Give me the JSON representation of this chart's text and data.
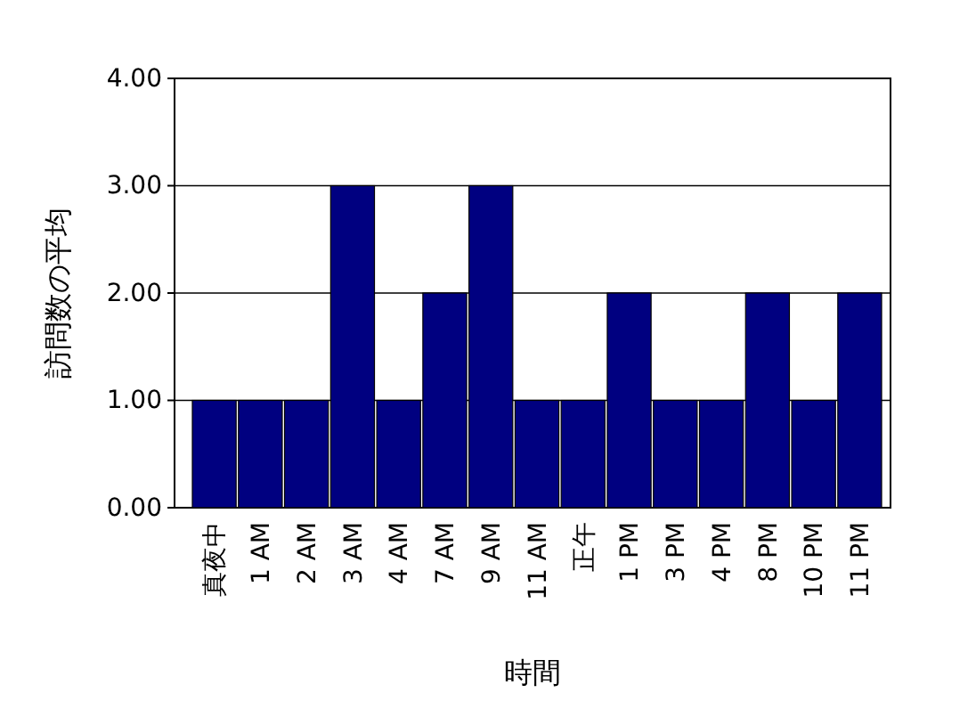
{
  "chart_data": {
    "type": "bar",
    "xlabel": "時間",
    "ylabel": "訪問数の平均",
    "categories": [
      "真夜中",
      "1 AM",
      "2 AM",
      "3 AM",
      "4 AM",
      "7 AM",
      "9 AM",
      "11 AM",
      "正午",
      "1 PM",
      "3 PM",
      "4 PM",
      "8 PM",
      "10 PM",
      "11 PM"
    ],
    "values": [
      1,
      1,
      1,
      3,
      1,
      2,
      3,
      1,
      1,
      2,
      1,
      1,
      2,
      1,
      2
    ],
    "color": "#000080",
    "ylim": [
      0,
      4
    ],
    "yticks": [
      {
        "value": 0,
        "label": "0.00"
      },
      {
        "value": 1,
        "label": "1.00"
      },
      {
        "value": 2,
        "label": "2.00"
      },
      {
        "value": 3,
        "label": "3.00"
      },
      {
        "value": 4,
        "label": "4.00"
      }
    ],
    "grid": "y"
  }
}
